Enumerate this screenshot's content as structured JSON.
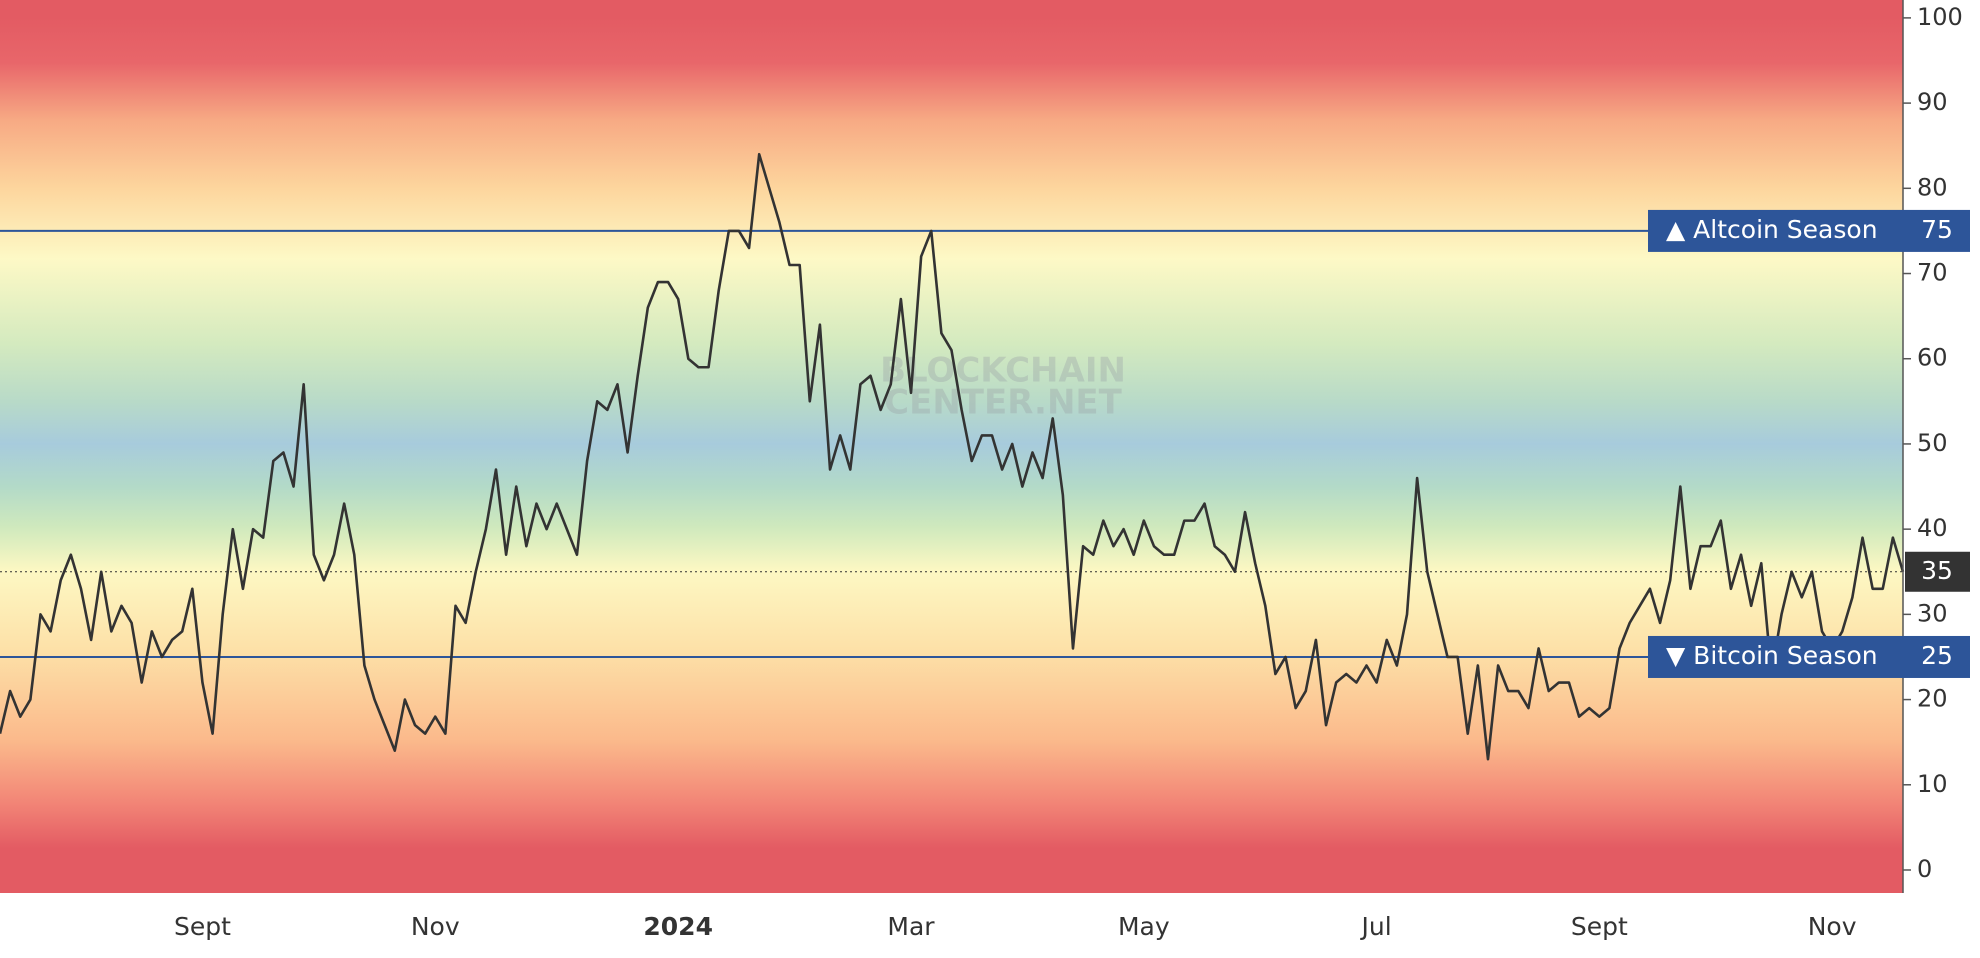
{
  "chart_data": {
    "type": "line",
    "categories": [
      null,
      null,
      null,
      null,
      null,
      null,
      null,
      null,
      null,
      null,
      null,
      null,
      null,
      null,
      null,
      null,
      null,
      null,
      null,
      null,
      "Sept",
      null,
      null,
      null,
      null,
      null,
      null,
      null,
      null,
      null,
      null,
      null,
      null,
      null,
      null,
      null,
      null,
      null,
      null,
      null,
      null,
      null,
      null,
      "Nov",
      null,
      null,
      null,
      null,
      null,
      null,
      null,
      null,
      null,
      null,
      null,
      null,
      null,
      null,
      null,
      null,
      null,
      null,
      null,
      null,
      null,
      null,
      null,
      "2024",
      null,
      null,
      null,
      null,
      null,
      null,
      null,
      null,
      null,
      null,
      null,
      null,
      null,
      null,
      null,
      null,
      null,
      null,
      null,
      null,
      null,
      null,
      "Mar",
      null,
      null,
      null,
      null,
      null,
      null,
      null,
      null,
      null,
      null,
      null,
      null,
      null,
      null,
      null,
      null,
      null,
      null,
      null,
      null,
      null,
      null,
      "May",
      null,
      null,
      null,
      null,
      null,
      null,
      null,
      null,
      null,
      null,
      null,
      null,
      null,
      null,
      null,
      null,
      null,
      null,
      null,
      null,
      null,
      null,
      "Jul",
      null,
      null,
      null,
      null,
      null,
      null,
      null,
      null,
      null,
      null,
      null,
      null,
      null,
      null,
      null,
      null,
      null,
      null,
      null,
      null,
      null,
      "Sept",
      null,
      null,
      null,
      null,
      null,
      null,
      null,
      null,
      null,
      null,
      null,
      null,
      null,
      null,
      null,
      null,
      null,
      null,
      null,
      null,
      null,
      null,
      "Nov",
      null,
      null,
      null,
      null,
      null,
      null,
      null
    ],
    "series": [
      {
        "color": "#333333",
        "values": [
          16,
          21,
          18,
          20,
          30,
          28,
          34,
          37,
          33,
          27,
          35,
          28,
          31,
          29,
          22,
          28,
          25,
          27,
          28,
          33,
          22,
          16,
          30,
          40,
          33,
          40,
          39,
          48,
          49,
          45,
          57,
          37,
          34,
          37,
          43,
          37,
          24,
          20,
          17,
          14,
          20,
          17,
          16,
          18,
          16,
          31,
          29,
          35,
          40,
          47,
          37,
          45,
          38,
          43,
          40,
          43,
          40,
          37,
          48,
          55,
          54,
          57,
          49,
          58,
          66,
          69,
          69,
          67,
          60,
          59,
          59,
          68,
          75,
          75,
          73,
          84,
          80,
          76,
          71,
          71,
          55,
          64,
          47,
          51,
          47,
          57,
          58,
          54,
          57,
          67,
          56,
          72,
          75,
          63,
          61,
          54,
          48,
          51,
          51,
          47,
          50,
          45,
          49,
          46,
          53,
          44,
          26,
          38,
          37,
          41,
          38,
          40,
          37,
          41,
          38,
          37,
          37,
          41,
          41,
          43,
          38,
          37,
          35,
          42,
          36,
          31,
          23,
          25,
          19,
          21,
          27,
          17,
          22,
          23,
          22,
          24,
          22,
          27,
          24,
          30,
          46,
          35,
          30,
          25,
          25,
          16,
          24,
          13,
          24,
          21,
          21,
          19,
          26,
          21,
          22,
          22,
          18,
          19,
          18,
          19,
          26,
          29,
          31,
          33,
          29,
          34,
          45,
          33,
          38,
          38,
          41,
          33,
          37,
          31,
          36,
          23,
          30,
          35,
          32,
          35,
          28,
          26,
          28,
          32,
          39,
          33,
          33,
          39,
          35
        ]
      }
    ],
    "ylim": [
      -2.7,
      102.1
    ],
    "yticks": [
      0,
      10,
      20,
      30,
      40,
      50,
      60,
      70,
      80,
      90,
      100
    ],
    "annotations": [
      {
        "label": "▲ Altcoin Season",
        "value": 75,
        "color": "#2d5599"
      },
      {
        "label": "▼ Bitcoin Season",
        "value": 25,
        "color": "#2d5599"
      }
    ],
    "watermark": [
      "BLOCKCHAIN",
      "CENTER.NET"
    ]
  }
}
